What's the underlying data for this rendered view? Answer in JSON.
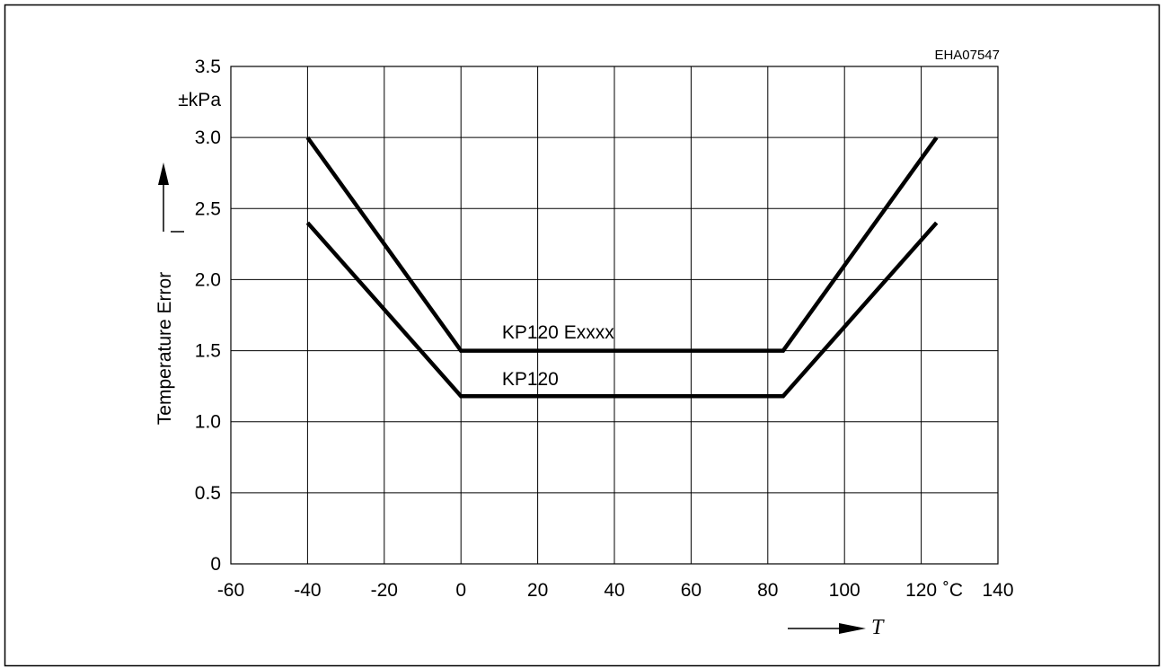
{
  "figure_code": "EHA07547",
  "chart_data": {
    "type": "line",
    "title": "",
    "xlabel": "T",
    "x_unit": "˚C",
    "ylabel": "Temperature Error",
    "y_unit": "±kPa",
    "xlim": [
      -60,
      140
    ],
    "ylim": [
      0,
      3.5
    ],
    "x_ticks": [
      "-60",
      "-40",
      "-20",
      "0",
      "20",
      "40",
      "60",
      "80",
      "100",
      "120",
      "140"
    ],
    "y_ticks": [
      "0",
      "0.5",
      "1.0",
      "1.5",
      "2.0",
      "2.5",
      "3.0",
      "3.5"
    ],
    "grid": true,
    "series": [
      {
        "name": "KP120 Exxxx",
        "x": [
          -40,
          0,
          84,
          124
        ],
        "y": [
          3.0,
          1.5,
          1.5,
          3.0
        ]
      },
      {
        "name": "KP120",
        "x": [
          -40,
          0,
          84,
          124
        ],
        "y": [
          2.4,
          1.18,
          1.18,
          2.4
        ]
      }
    ],
    "colors": {
      "line": "#000000",
      "grid": "#000000"
    }
  }
}
